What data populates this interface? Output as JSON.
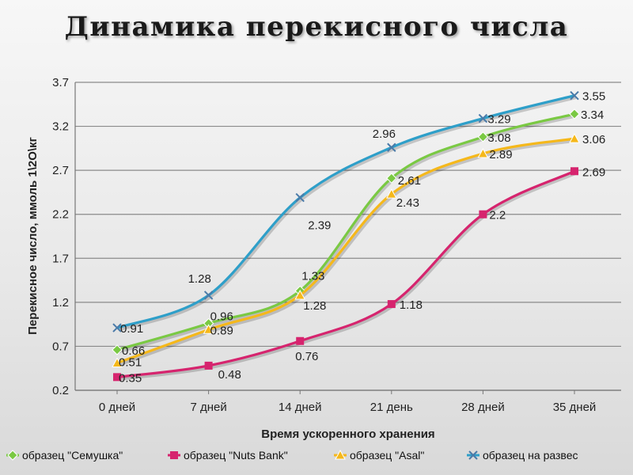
{
  "title": "Динамика перекисного числа",
  "chart_data": {
    "type": "line",
    "title": "Динамика перекисного числа",
    "xlabel": "Время ускоренного хранения",
    "ylabel": "Перекисное число, ммоль 1\\2O\\кг",
    "categories": [
      "0 дней",
      "7 дней",
      "14 дней",
      "21 день",
      "28 дней",
      "35 дней"
    ],
    "y_ticks": [
      "0.2",
      "0.7",
      "1.2",
      "1.7",
      "2.2",
      "2.7",
      "3.2",
      "3.7"
    ],
    "ylim": [
      0.2,
      3.7
    ],
    "grid": true,
    "legend_position": "bottom",
    "series": [
      {
        "name": "образец \"Семушка\"",
        "color": "#7ac943",
        "marker": "diamond",
        "values": [
          0.66,
          0.96,
          1.33,
          2.61,
          3.08,
          3.34
        ],
        "labels": [
          "0.66",
          "0.96",
          "1.33",
          "2.61",
          "3.08",
          "3.34"
        ]
      },
      {
        "name": "образец \"Nuts Bank\"",
        "color": "#d6246e",
        "marker": "square",
        "values": [
          0.35,
          0.48,
          0.76,
          1.18,
          2.2,
          2.69
        ],
        "labels": [
          "0.35",
          "0.48",
          "0.76",
          "1.18",
          "2.2",
          "2.69"
        ]
      },
      {
        "name": "образец \"Asal\"",
        "color": "#f5b81b",
        "marker": "triangle",
        "values": [
          0.51,
          0.89,
          1.28,
          2.43,
          2.89,
          3.06
        ],
        "labels": [
          "0.51",
          "0.89",
          "1.28",
          "2.43",
          "2.89",
          "3.06"
        ]
      },
      {
        "name": "образец на развес",
        "color": "#2e9fc9",
        "marker": "x",
        "values": [
          0.91,
          1.28,
          2.39,
          2.96,
          3.29,
          3.55
        ],
        "labels": [
          "0.91",
          "1.28",
          "2.39",
          "2.96",
          "3.29",
          "3.55"
        ]
      }
    ]
  }
}
